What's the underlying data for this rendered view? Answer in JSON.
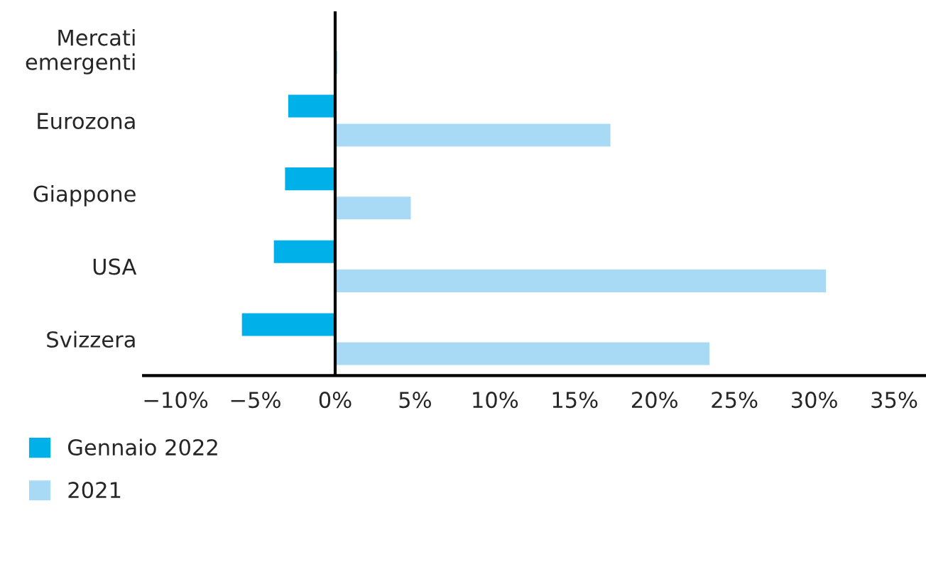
{
  "chart_data": {
    "type": "bar",
    "orientation": "horizontal",
    "categories": [
      "Mercati\nemergenti",
      "Eurozona",
      "Giappone",
      "USA",
      "Svizzera"
    ],
    "series": [
      {
        "name": "Gennaio 2022",
        "color": "#00b0e8",
        "values": [
          null,
          -3.0,
          -3.2,
          -3.9,
          -5.9
        ]
      },
      {
        "name": "2021",
        "color": "#a8daf5",
        "values": [
          0.2,
          17.3,
          4.8,
          30.8,
          23.5
        ]
      }
    ],
    "xlim": [
      -12,
      37
    ],
    "xticks": [
      {
        "value": -10,
        "label": "−10%"
      },
      {
        "value": -5,
        "label": "−5%"
      },
      {
        "value": 0,
        "label": "0%"
      },
      {
        "value": 5,
        "label": "5%"
      },
      {
        "value": 10,
        "label": "10%"
      },
      {
        "value": 15,
        "label": "15%"
      },
      {
        "value": 20,
        "label": "20%"
      },
      {
        "value": 25,
        "label": "25%"
      },
      {
        "value": 30,
        "label": "30%"
      },
      {
        "value": 35,
        "label": "35%"
      }
    ],
    "ref_lines": [
      {
        "axis": "x",
        "value": 0,
        "label": null,
        "color": "#000000"
      }
    ],
    "grid": false,
    "legend": "bottom"
  }
}
